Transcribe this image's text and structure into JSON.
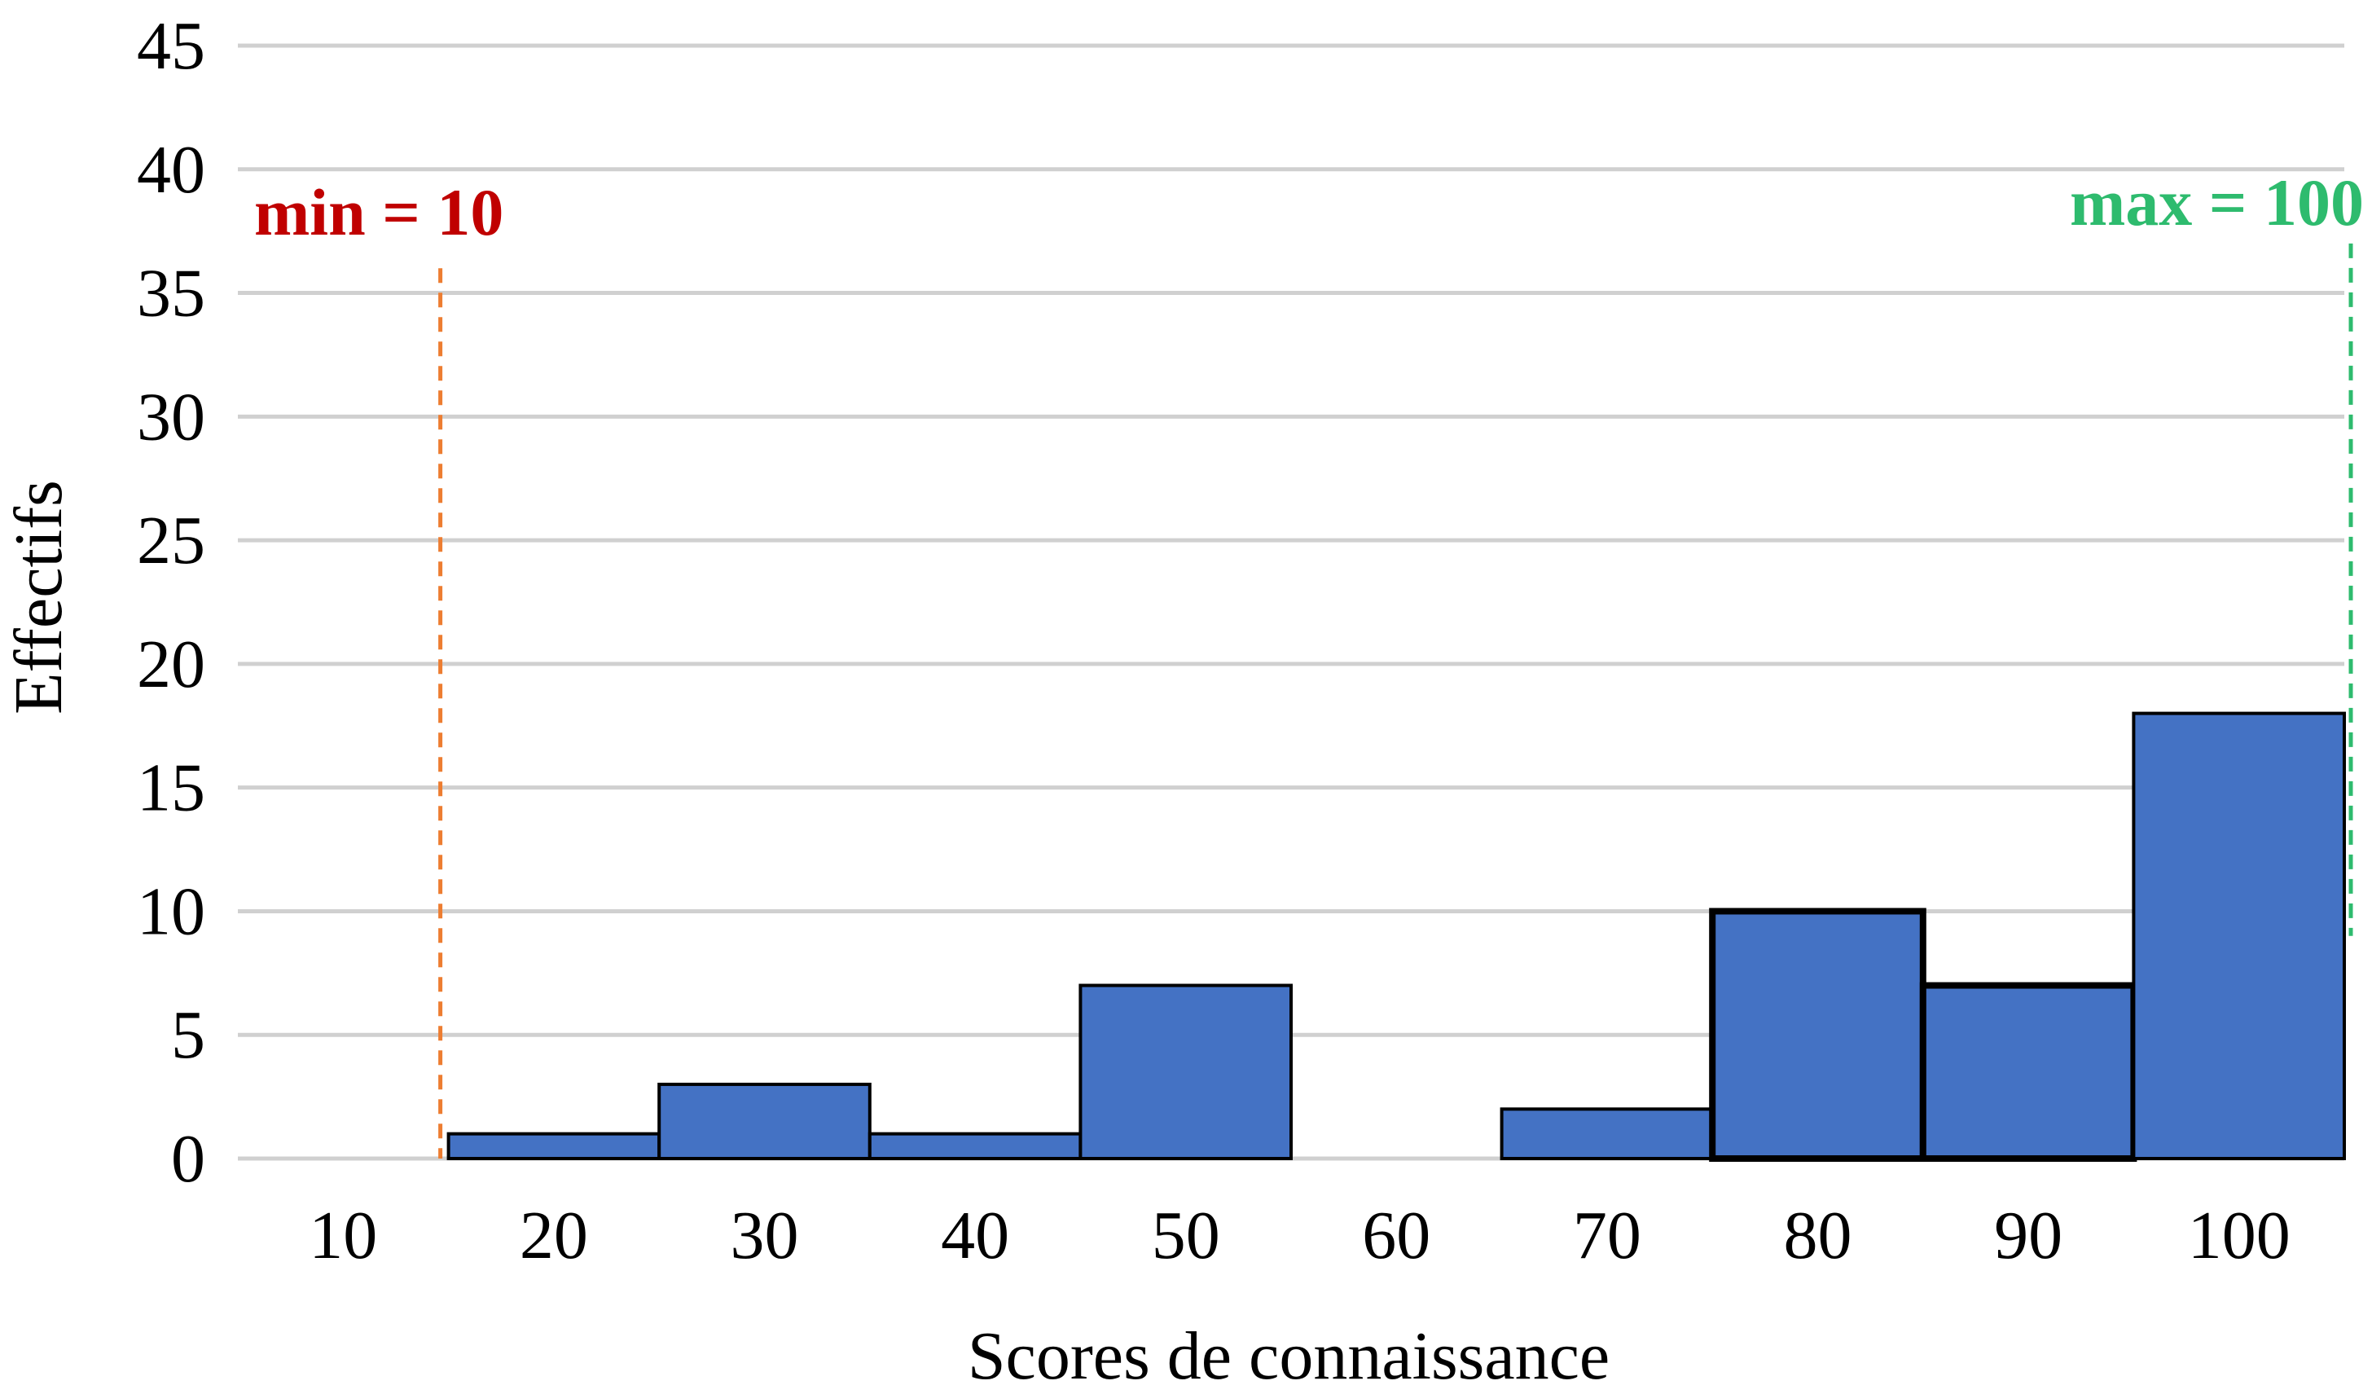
{
  "chart_data": {
    "type": "bar",
    "categories": [
      "10",
      "20",
      "30",
      "40",
      "50",
      "60",
      "70",
      "80",
      "90",
      "100"
    ],
    "values": [
      0,
      1,
      3,
      1,
      7,
      0,
      2,
      10,
      7,
      18
    ],
    "xlabel": "Scores de connaissance",
    "ylabel": "Effectifs",
    "ylim": [
      0,
      45
    ],
    "yticks": [
      "0",
      "5",
      "10",
      "15",
      "20",
      "25",
      "30",
      "35",
      "40",
      "45"
    ],
    "grid": true,
    "bar_color": "#4472C4",
    "bar_edge_color": "#000000",
    "grid_color": "#D0D0D0",
    "emphasized_categories": [
      "80",
      "90"
    ],
    "annotations": [
      {
        "text": "min = 10",
        "color": "#C00000",
        "line_color": "#ED7D31",
        "at": "between 10 and 20",
        "line_top": 36,
        "line_bottom": 0,
        "side": "left"
      },
      {
        "text": "max = 100",
        "color": "#2EBB6E",
        "line_color": "#2EBB6E",
        "at": "right edge of 100",
        "line_top": 37,
        "line_bottom": 9,
        "side": "right"
      }
    ]
  }
}
